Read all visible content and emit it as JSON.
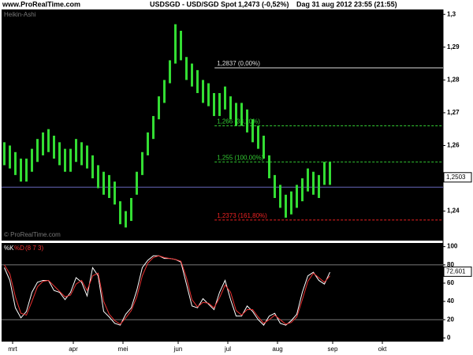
{
  "header": {
    "site": "www.ProRealTime.com",
    "instrument": "USDSGD - USD/SGD Spot",
    "quote": "1,2473 (-0,52%)",
    "timestamp": "Dag 31 aug 2012 23:55 (21:55)"
  },
  "chart_data": [
    {
      "type": "range_bar",
      "watermark": "© ProRealTime.com",
      "x": [
        0.5,
        1.5,
        2.5,
        3.5,
        4.5,
        5.5,
        6.5,
        7.5,
        8.5,
        9.5,
        10.5,
        11.5,
        12.5,
        13.5,
        14.5,
        15.5,
        16.5,
        17.5,
        18.5,
        19.5,
        20.5,
        21.5,
        22.5,
        23.5,
        24.5,
        25.5,
        26.5,
        27.5,
        28.5,
        29.5,
        30.5,
        31.5,
        32.5,
        33.5,
        34.5,
        35.5,
        36.5,
        37.5,
        38.5,
        39.5,
        40.5,
        41.5,
        42.5,
        43.5,
        44.5,
        45.5,
        46.5,
        47.5,
        48.5,
        49.5,
        50.5,
        51.5,
        52.5,
        53.5,
        54.5,
        55.5,
        56.5,
        57.5,
        58.5,
        59.5
      ],
      "series": [
        {
          "name": "Heikin-Ashi",
          "color": "#33dd33",
          "high": [
            1.261,
            1.26,
            1.258,
            1.256,
            1.256,
            1.259,
            1.262,
            1.264,
            1.265,
            1.263,
            1.261,
            1.259,
            1.259,
            1.262,
            1.261,
            1.26,
            1.257,
            1.254,
            1.252,
            1.251,
            1.249,
            1.243,
            1.24,
            1.244,
            1.252,
            1.258,
            1.264,
            1.269,
            1.275,
            1.28,
            1.286,
            1.297,
            1.295,
            1.287,
            1.285,
            1.283,
            1.28,
            1.279,
            1.276,
            1.276,
            1.278,
            1.275,
            1.273,
            1.273,
            1.271,
            1.268,
            1.266,
            1.263,
            1.257,
            1.251,
            1.248,
            1.245,
            1.246,
            1.248,
            1.25,
            1.253,
            1.252,
            1.251,
            1.255,
            1.255
          ],
          "low": [
            1.254,
            1.253,
            1.251,
            1.249,
            1.249,
            1.252,
            1.255,
            1.257,
            1.258,
            1.256,
            1.254,
            1.252,
            1.252,
            1.255,
            1.254,
            1.253,
            1.25,
            1.247,
            1.245,
            1.244,
            1.242,
            1.236,
            1.235,
            1.237,
            1.245,
            1.251,
            1.257,
            1.262,
            1.268,
            1.273,
            1.279,
            1.285,
            1.286,
            1.28,
            1.278,
            1.276,
            1.273,
            1.272,
            1.269,
            1.269,
            1.271,
            1.268,
            1.266,
            1.266,
            1.264,
            1.261,
            1.259,
            1.256,
            1.25,
            1.244,
            1.241,
            1.238,
            1.239,
            1.241,
            1.243,
            1.246,
            1.245,
            1.244,
            1.248,
            1.248
          ]
        }
      ],
      "xlim": [
        0,
        80
      ],
      "ylim": [
        1.231,
        1.3015
      ],
      "yticks": [
        {
          "value": 1.3,
          "label": "1,3"
        },
        {
          "value": 1.29,
          "label": "1,29"
        },
        {
          "value": 1.28,
          "label": "1,28"
        },
        {
          "value": 1.27,
          "label": "1,27"
        },
        {
          "value": 1.26,
          "label": "1,26"
        },
        {
          "value": 1.25,
          "label": "1,25"
        },
        {
          "value": 1.24,
          "label": "1,24"
        }
      ],
      "levels": [
        {
          "value": 1.2837,
          "label": "1,2837 (0,00%)",
          "color": "#dddddd",
          "dashed": false,
          "start": 38.6
        },
        {
          "value": 1.266,
          "label": "1,266 (38,20%)",
          "color": "#33cc33",
          "dashed": true,
          "start": 38.6
        },
        {
          "value": 1.255,
          "label": "1,255 (100,00%)",
          "color": "#33cc33",
          "dashed": true,
          "start": 38.6
        },
        {
          "value": 1.2373,
          "label": "1,2373 (161,80%)",
          "color": "#ee2222",
          "dashed": true,
          "start": 38.6
        }
      ],
      "price_line": {
        "value": 1.2473,
        "color": "#6666bb"
      },
      "price_marker": {
        "value": 1.2503,
        "label": "1,2503"
      }
    },
    {
      "type": "line",
      "params": "(8 7 3)",
      "x": [
        0.5,
        1.5,
        2.5,
        3.5,
        4.5,
        5.5,
        6.5,
        7.5,
        8.5,
        9.5,
        10.5,
        11.5,
        12.5,
        13.5,
        14.5,
        15.5,
        16.5,
        17.5,
        18.5,
        19.5,
        20.5,
        21.5,
        22.5,
        23.5,
        24.5,
        25.5,
        26.5,
        27.5,
        28.5,
        29.5,
        30.5,
        31.5,
        32.5,
        33.5,
        34.5,
        35.5,
        36.5,
        37.5,
        38.5,
        39.5,
        40.5,
        41.5,
        42.5,
        43.5,
        44.5,
        45.5,
        46.5,
        47.5,
        48.5,
        49.5,
        50.5,
        51.5,
        52.5,
        53.5,
        54.5,
        55.5,
        56.5,
        57.5,
        58.5,
        59.5
      ],
      "series": [
        {
          "name": "%K",
          "color": "#ffffff",
          "values": [
            77,
            63,
            33,
            22,
            29,
            50,
            61,
            63,
            63,
            52,
            50,
            42,
            50,
            66,
            61,
            46,
            77,
            68,
            29,
            23,
            16,
            14,
            26,
            33,
            52,
            77,
            85,
            90,
            90,
            87,
            87,
            86,
            83,
            59,
            35,
            33,
            43,
            37,
            31,
            50,
            63,
            42,
            24,
            24,
            35,
            29,
            20,
            14,
            24,
            27,
            16,
            14,
            19,
            26,
            50,
            68,
            72,
            63,
            59,
            72
          ]
        },
        {
          "name": "%D",
          "color": "#ee3333",
          "values": [
            80,
            70,
            45,
            27,
            25,
            40,
            56,
            62,
            63,
            57,
            51,
            45,
            47,
            59,
            63,
            52,
            68,
            71,
            40,
            26,
            19,
            15,
            22,
            30,
            45,
            68,
            82,
            88,
            90,
            88,
            87,
            86,
            84,
            66,
            42,
            34,
            39,
            38,
            33,
            44,
            58,
            50,
            30,
            25,
            31,
            31,
            23,
            16,
            20,
            25,
            20,
            15,
            17,
            23,
            42,
            62,
            71,
            66,
            61,
            68
          ]
        }
      ],
      "xlim": [
        0,
        80
      ],
      "xticks": [
        {
          "value": 2,
          "label": "mrt"
        },
        {
          "value": 13,
          "label": "apr"
        },
        {
          "value": 22,
          "label": "mei"
        },
        {
          "value": 32,
          "label": "jun"
        },
        {
          "value": 41,
          "label": "jul"
        },
        {
          "value": 50,
          "label": "aug"
        },
        {
          "value": 60,
          "label": "sep"
        },
        {
          "value": 69,
          "label": "okt"
        }
      ],
      "ylim": [
        -4,
        104
      ],
      "yticks": [
        0,
        20,
        40,
        60,
        80,
        100
      ],
      "levels": [
        {
          "value": 80,
          "color": "#777777"
        },
        {
          "value": 20,
          "color": "#777777"
        }
      ],
      "price_marker": {
        "value": 72.601,
        "label": "72,601"
      }
    }
  ]
}
